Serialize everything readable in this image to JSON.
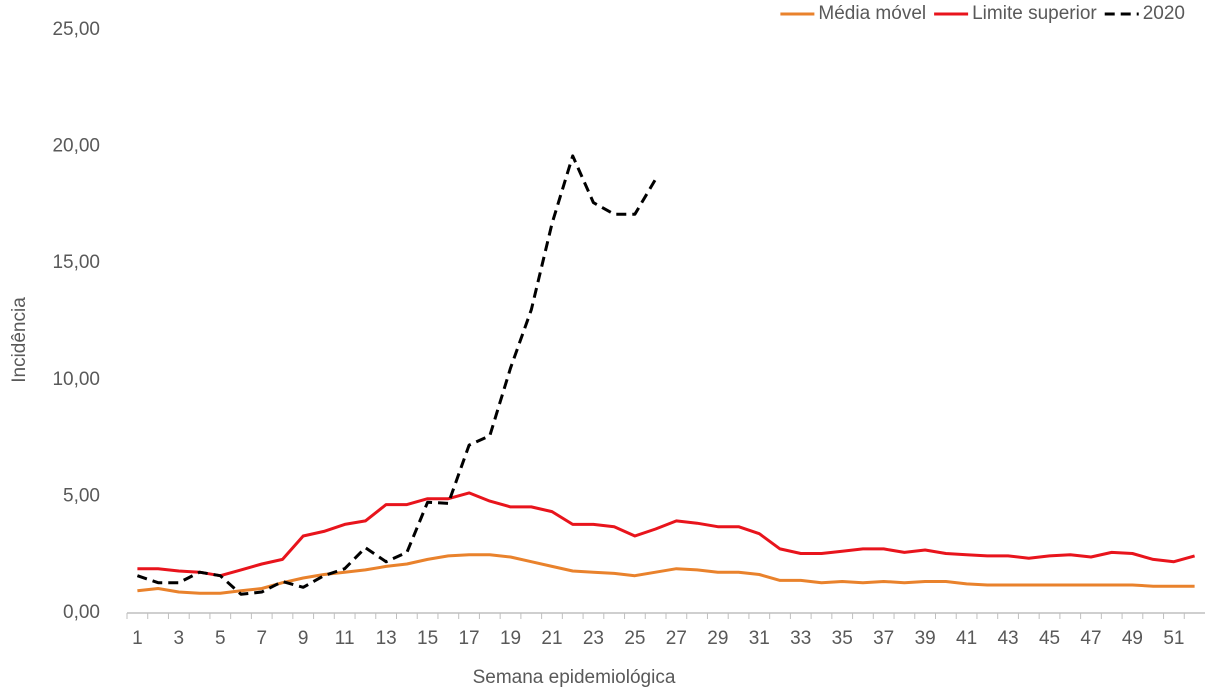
{
  "chart_data": {
    "type": "line",
    "x_label": "Semana epidemiológica",
    "y_label": "Incidência",
    "categories": [
      "1",
      null,
      "3",
      null,
      "5",
      null,
      "7",
      null,
      "9",
      null,
      "11",
      null,
      "13",
      null,
      "15",
      null,
      "17",
      null,
      "19",
      null,
      "21",
      null,
      "23",
      null,
      "25",
      null,
      "27",
      null,
      "29",
      null,
      "31",
      null,
      "33",
      null,
      "35",
      null,
      "37",
      null,
      "39",
      null,
      "41",
      null,
      "43",
      null,
      "45",
      null,
      "47",
      null,
      "49",
      null,
      "51",
      null
    ],
    "ylim": [
      0,
      25
    ],
    "yticks": [
      {
        "value": 0,
        "label": "0,00"
      },
      {
        "value": 5,
        "label": "5,00"
      },
      {
        "value": 10,
        "label": "10,00"
      },
      {
        "value": 15,
        "label": "15,00"
      },
      {
        "value": 20,
        "label": "20,00"
      },
      {
        "value": 25,
        "label": "25,00"
      }
    ],
    "legend": "top-right",
    "series": [
      {
        "name": "Média móvel",
        "color": "#e9822c",
        "dash": false,
        "values": [
          0.95,
          1.05,
          0.9,
          0.85,
          0.85,
          0.95,
          1.05,
          1.3,
          1.5,
          1.65,
          1.75,
          1.85,
          2.0,
          2.1,
          2.3,
          2.45,
          2.5,
          2.5,
          2.4,
          2.2,
          2.0,
          1.8,
          1.75,
          1.7,
          1.6,
          1.75,
          1.9,
          1.85,
          1.75,
          1.75,
          1.65,
          1.4,
          1.4,
          1.3,
          1.35,
          1.3,
          1.35,
          1.3,
          1.35,
          1.35,
          1.25,
          1.2,
          1.2,
          1.2,
          1.2,
          1.2,
          1.2,
          1.2,
          1.2,
          1.15,
          1.15,
          1.15
        ]
      },
      {
        "name": "Limite superior",
        "color": "#e8141c",
        "dash": false,
        "values": [
          1.9,
          1.9,
          1.8,
          1.75,
          1.6,
          1.85,
          2.1,
          2.3,
          3.3,
          3.5,
          3.8,
          3.95,
          4.65,
          4.65,
          4.9,
          4.9,
          5.15,
          4.8,
          4.55,
          4.55,
          4.35,
          3.8,
          3.8,
          3.7,
          3.3,
          3.6,
          3.95,
          3.85,
          3.7,
          3.7,
          3.4,
          2.75,
          2.55,
          2.55,
          2.65,
          2.75,
          2.75,
          2.6,
          2.7,
          2.55,
          2.5,
          2.45,
          2.45,
          2.35,
          2.45,
          2.5,
          2.4,
          2.6,
          2.55,
          2.3,
          2.2,
          2.45
        ]
      },
      {
        "name": "2020",
        "color": "#000000",
        "dash": true,
        "values": [
          1.6,
          1.3,
          1.3,
          1.75,
          1.6,
          0.8,
          0.9,
          1.35,
          1.1,
          1.6,
          1.9,
          2.8,
          2.2,
          2.6,
          4.75,
          4.7,
          7.2,
          7.6,
          10.5,
          13.0,
          16.7,
          19.6,
          17.6,
          17.1,
          17.1,
          18.6,
          null,
          null,
          null,
          null,
          null,
          null,
          null,
          null,
          null,
          null,
          null,
          null,
          null,
          null,
          null,
          null,
          null,
          null,
          null,
          null,
          null,
          null,
          null,
          null,
          null,
          null
        ]
      }
    ]
  }
}
